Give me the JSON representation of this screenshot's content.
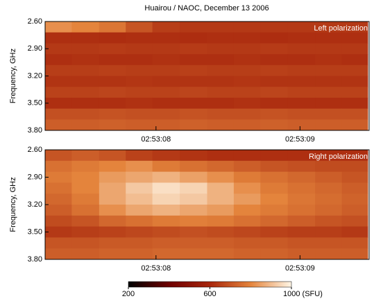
{
  "chart_data": [
    {
      "type": "heatmap",
      "title": "Huairou / NAOC,  December 13 2006",
      "annotation": "Left polarization",
      "ylabel": "Frequency, GHz",
      "ylim": [
        3.8,
        2.6
      ],
      "yticks": [
        {
          "value": 2.6,
          "label": "2.60"
        },
        {
          "value": 2.9,
          "label": "2.90"
        },
        {
          "value": 3.2,
          "label": "3.20"
        },
        {
          "value": 3.5,
          "label": "3.50"
        },
        {
          "value": 3.8,
          "label": "3.80"
        }
      ],
      "xlim": [
        10387.23,
        10389.48
      ],
      "xticks": [
        {
          "value": 10388,
          "label": "02:53:08"
        },
        {
          "value": 10389,
          "label": "02:53:09"
        }
      ],
      "x": [
        10387.32,
        10387.51,
        10387.7,
        10387.88,
        10388.07,
        10388.26,
        10388.45,
        10388.63,
        10388.82,
        10389.01,
        10389.2,
        10389.38
      ],
      "y": [
        2.66,
        2.78,
        2.9,
        3.02,
        3.14,
        3.26,
        3.38,
        3.5,
        3.62,
        3.74
      ],
      "values": [
        [
          820,
          800,
          770,
          700,
          650,
          640,
          640,
          640,
          640,
          640,
          640,
          640
        ],
        [
          620,
          620,
          615,
          620,
          620,
          615,
          620,
          620,
          615,
          620,
          620,
          620
        ],
        [
          640,
          640,
          645,
          640,
          640,
          645,
          640,
          640,
          645,
          640,
          640,
          640
        ],
        [
          620,
          625,
          620,
          620,
          625,
          620,
          620,
          625,
          620,
          620,
          625,
          620
        ],
        [
          650,
          650,
          655,
          650,
          650,
          655,
          650,
          650,
          655,
          650,
          650,
          650
        ],
        [
          630,
          630,
          630,
          635,
          630,
          630,
          630,
          635,
          630,
          630,
          630,
          630
        ],
        [
          660,
          660,
          665,
          660,
          660,
          665,
          660,
          660,
          665,
          660,
          660,
          660
        ],
        [
          620,
          620,
          620,
          625,
          620,
          620,
          620,
          625,
          620,
          620,
          620,
          620
        ],
        [
          690,
          690,
          695,
          690,
          690,
          695,
          690,
          690,
          695,
          690,
          690,
          690
        ],
        [
          720,
          720,
          725,
          720,
          720,
          725,
          720,
          720,
          725,
          720,
          720,
          720
        ]
      ]
    },
    {
      "type": "heatmap",
      "annotation": "Right polarization",
      "ylabel": "Frequency, GHz",
      "ylim": [
        3.8,
        2.6
      ],
      "yticks": [
        {
          "value": 2.6,
          "label": "2.60"
        },
        {
          "value": 2.9,
          "label": "2.90"
        },
        {
          "value": 3.2,
          "label": "3.20"
        },
        {
          "value": 3.5,
          "label": "3.50"
        },
        {
          "value": 3.8,
          "label": "3.80"
        }
      ],
      "xlim": [
        10387.23,
        10389.48
      ],
      "xticks": [
        {
          "value": 10388,
          "label": "02:53:08"
        },
        {
          "value": 10389,
          "label": "02:53:09"
        }
      ],
      "x": [
        10387.32,
        10387.51,
        10387.7,
        10387.88,
        10388.07,
        10388.26,
        10388.45,
        10388.63,
        10388.82,
        10389.01,
        10389.2,
        10389.38
      ],
      "y": [
        2.66,
        2.78,
        2.9,
        3.02,
        3.14,
        3.26,
        3.38,
        3.5,
        3.62,
        3.74
      ],
      "values": [
        [
          700,
          720,
          700,
          660,
          640,
          630,
          620,
          620,
          620,
          620,
          620,
          620
        ],
        [
          760,
          780,
          800,
          820,
          780,
          760,
          740,
          720,
          700,
          690,
          680,
          680
        ],
        [
          780,
          800,
          840,
          860,
          880,
          850,
          820,
          780,
          760,
          740,
          720,
          700
        ],
        [
          760,
          800,
          860,
          920,
          960,
          940,
          880,
          820,
          780,
          760,
          740,
          720
        ],
        [
          740,
          780,
          860,
          900,
          940,
          920,
          880,
          840,
          800,
          770,
          750,
          730
        ],
        [
          720,
          760,
          820,
          860,
          880,
          860,
          840,
          800,
          780,
          760,
          740,
          720
        ],
        [
          680,
          700,
          740,
          760,
          780,
          790,
          780,
          760,
          740,
          720,
          700,
          690
        ],
        [
          640,
          650,
          660,
          670,
          680,
          690,
          680,
          670,
          660,
          650,
          650,
          640
        ],
        [
          700,
          700,
          710,
          710,
          720,
          720,
          720,
          710,
          710,
          700,
          700,
          700
        ],
        [
          720,
          720,
          730,
          730,
          740,
          740,
          740,
          730,
          730,
          720,
          720,
          720
        ]
      ]
    },
    {
      "type": "colorbar",
      "xlim": [
        200,
        1000
      ],
      "xticks": [
        200,
        600,
        {
          "value": 1000,
          "label": "1000 (SFU)"
        }
      ],
      "colorscale": [
        [
          200,
          "#000000"
        ],
        [
          400,
          "#6e0000"
        ],
        [
          600,
          "#a8260c"
        ],
        [
          800,
          "#e4843c"
        ],
        [
          1000,
          "#fff6e6"
        ]
      ]
    }
  ]
}
